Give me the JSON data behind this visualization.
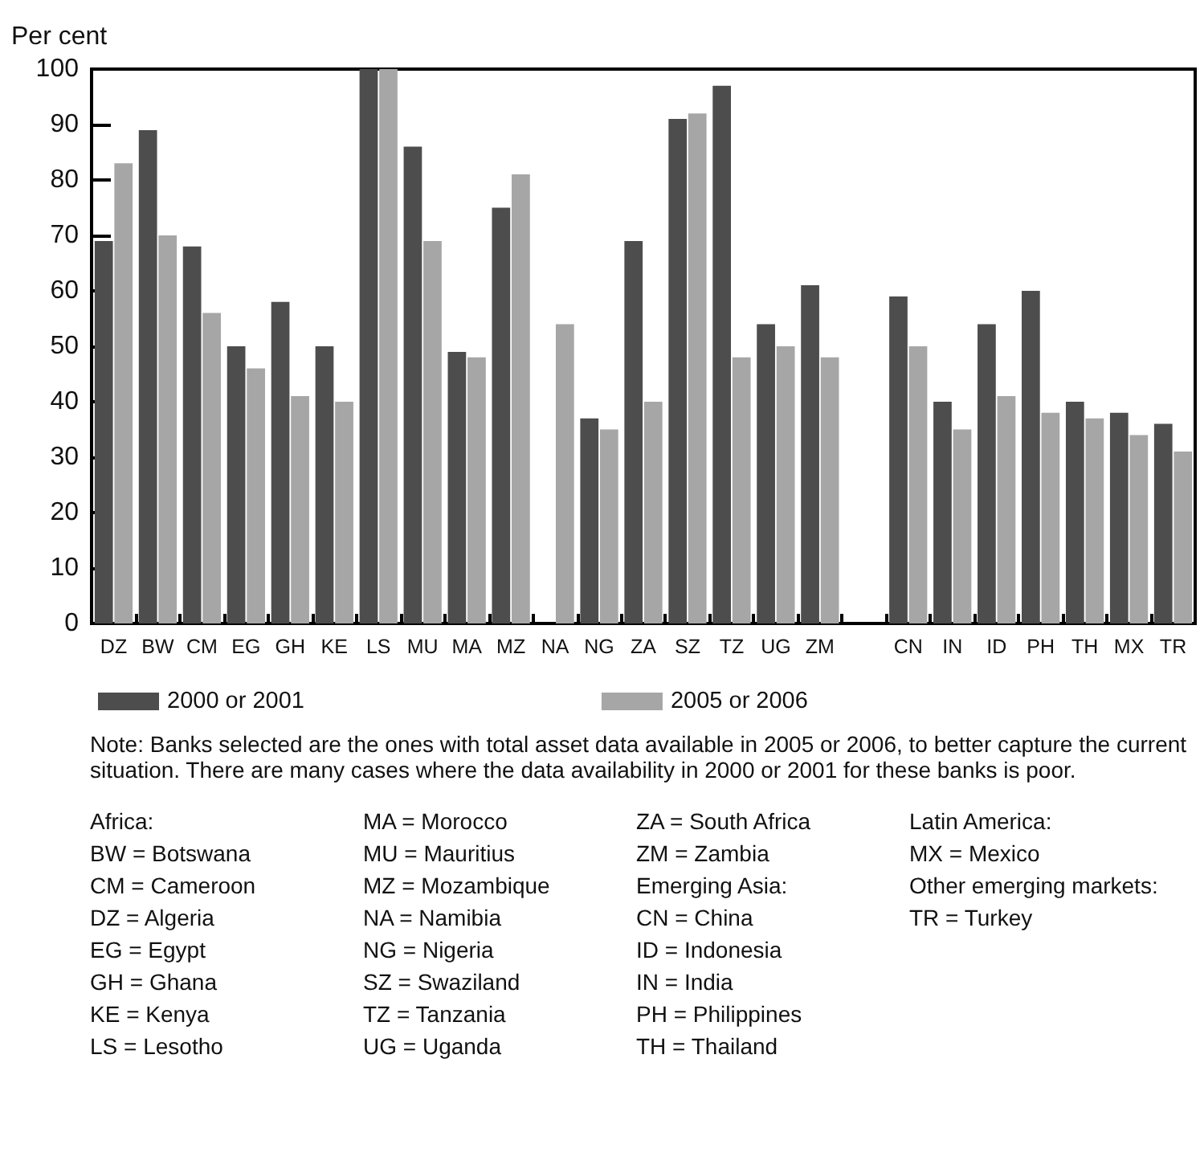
{
  "chart_data": {
    "type": "bar",
    "ylabel": "Per cent",
    "categories": [
      "DZ",
      "BW",
      "CM",
      "EG",
      "GH",
      "KE",
      "LS",
      "MU",
      "MA",
      "MZ",
      "NA",
      "NG",
      "ZA",
      "SZ",
      "TZ",
      "UG",
      "ZM",
      null,
      "CN",
      "IN",
      "ID",
      "PH",
      "TH",
      "MX",
      "TR"
    ],
    "series": [
      {
        "name": "2000 or 2001",
        "color": "#4d4d4d",
        "values": [
          69,
          89,
          68,
          50,
          58,
          50,
          100,
          86,
          49,
          75,
          null,
          37,
          69,
          91,
          97,
          54,
          61,
          null,
          59,
          40,
          54,
          60,
          40,
          38,
          36
        ]
      },
      {
        "name": "2005 or 2006",
        "color": "#a6a6a6",
        "values": [
          83,
          70,
          56,
          46,
          41,
          40,
          100,
          69,
          48,
          81,
          54,
          35,
          40,
          92,
          48,
          50,
          48,
          null,
          50,
          35,
          41,
          38,
          37,
          34,
          31
        ]
      }
    ],
    "ylim": [
      0,
      100
    ],
    "yticks": [
      0,
      10,
      20,
      30,
      40,
      50,
      60,
      70,
      80,
      90,
      100
    ],
    "grid": false,
    "legend": "bottom",
    "annotations": [
      "Note: Banks selected are the ones with total asset data available in 2005 or 2006, to better capture the current situation. There are many cases where the data availability in 2000 or 2001 for these banks is poor.",
      "Africa:",
      "BW = Botswana",
      "CM = Cameroon",
      "DZ = Algeria",
      "EG = Egypt",
      "GH = Ghana",
      "KE = Kenya",
      "LS = Lesotho",
      "MA = Morocco",
      "MU = Mauritius",
      "MZ = Mozambique",
      "NA = Namibia",
      "NG = Nigeria",
      "SZ = Swaziland",
      "TZ = Tanzania",
      "UG = Uganda",
      "ZA = South Africa",
      "ZM = Zambia",
      "Emerging Asia:",
      "CN = China",
      "ID = Indonesia",
      "IN = India",
      "PH = Philippines",
      "TH = Thailand",
      "Latin America:",
      "MX = Mexico",
      "Other emerging markets:",
      "TR = Turkey"
    ]
  }
}
